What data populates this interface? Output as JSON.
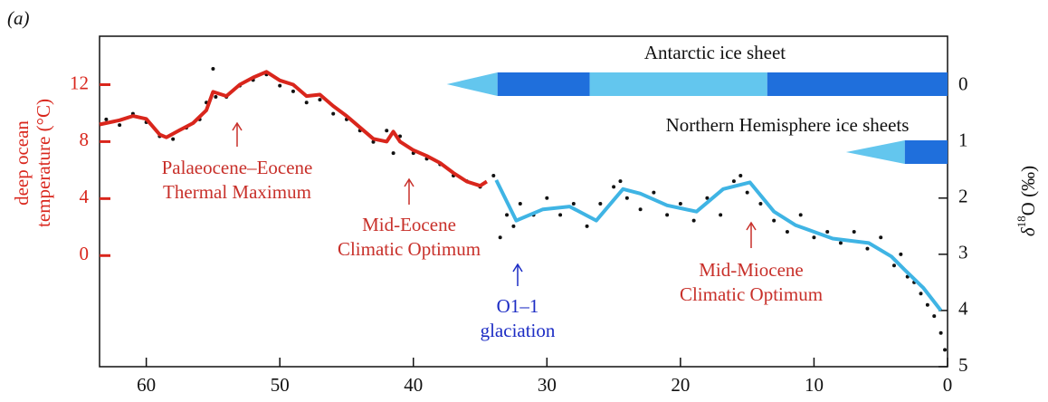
{
  "chart_data": {
    "type": "line",
    "panel_label": "(a)",
    "y_label": [
      "deep ocean",
      "temperature (°C)"
    ],
    "y2_label": [
      "δ",
      "18",
      "O (‰)"
    ],
    "xlim": [
      63.5,
      0
    ],
    "xticks": [
      60,
      50,
      40,
      30,
      20,
      10,
      0
    ],
    "ylim": [
      -7.8,
      15.4
    ],
    "yticks": [
      0,
      4,
      8,
      12
    ],
    "y2lim": [
      5,
      -0.88
    ],
    "y2ticks": [
      0,
      1,
      2,
      3,
      4,
      5
    ],
    "series": [
      {
        "kind": "scatter",
        "color": "#111111",
        "axis": "y2",
        "x": [
          63,
          62,
          61,
          60,
          59,
          58,
          57,
          56,
          55.5,
          55,
          54.8,
          54,
          53,
          52,
          51,
          50,
          49,
          48,
          47,
          46,
          45,
          44,
          43,
          42,
          41.5,
          41,
          40,
          39,
          38,
          37,
          36,
          35,
          34,
          33.5,
          33,
          32.5,
          32,
          31,
          30,
          29,
          28,
          27,
          26,
          25,
          24.5,
          24,
          23,
          22,
          21,
          20,
          19,
          18,
          17,
          16,
          15.5,
          15,
          14,
          13,
          12,
          11,
          10,
          9,
          8,
          7,
          6,
          5,
          4,
          3.5,
          3,
          2.5,
          2,
          1.5,
          1,
          0.5,
          0.2
        ],
        "values": [
          0.6,
          0.7,
          0.5,
          0.65,
          0.9,
          0.95,
          0.75,
          0.6,
          0.3,
          -0.3,
          0.2,
          0.2,
          0.0,
          -0.1,
          -0.2,
          0.0,
          0.1,
          0.3,
          0.25,
          0.5,
          0.6,
          0.8,
          1.0,
          0.8,
          1.2,
          0.9,
          1.2,
          1.3,
          1.4,
          1.6,
          1.7,
          1.8,
          1.6,
          2.7,
          2.3,
          2.5,
          2.1,
          2.3,
          2.0,
          2.3,
          2.1,
          2.5,
          2.1,
          1.8,
          1.7,
          2.0,
          2.2,
          1.9,
          2.3,
          2.1,
          2.4,
          2.0,
          2.3,
          1.7,
          1.6,
          1.9,
          2.1,
          2.4,
          2.6,
          2.3,
          2.7,
          2.6,
          2.8,
          2.6,
          2.9,
          2.7,
          3.2,
          3.0,
          3.4,
          3.5,
          3.7,
          3.9,
          4.1,
          4.4,
          4.7
        ]
      },
      {
        "kind": "line",
        "color": "#d9261c",
        "axis": "y",
        "x": [
          63.5,
          62,
          61,
          60,
          59,
          58.5,
          57.5,
          56.5,
          55.5,
          55,
          54,
          53,
          52,
          51,
          50,
          49,
          48,
          47,
          46,
          45,
          44,
          43,
          42,
          41.5,
          41,
          40,
          39,
          38,
          37,
          36,
          35,
          34.5
        ],
        "values": [
          9.2,
          9.5,
          9.8,
          9.6,
          8.5,
          8.3,
          8.8,
          9.3,
          10.2,
          11.5,
          11.2,
          12,
          12.5,
          12.9,
          12.3,
          12,
          11.2,
          11.3,
          10.5,
          9.8,
          9,
          8.2,
          8,
          8.7,
          8,
          7.4,
          7,
          6.5,
          5.8,
          5.2,
          4.9,
          5.2
        ]
      },
      {
        "kind": "line",
        "color": "#3fb4e4",
        "axis": "y2",
        "x": [
          33.8,
          32.3,
          30.3,
          28.3,
          26.3,
          24.3,
          23,
          21,
          18.8,
          16.8,
          14.8,
          13,
          11.4,
          8.6,
          5.9,
          4.2,
          3.2,
          1.8,
          0.5
        ],
        "values": [
          1.68,
          2.4,
          2.2,
          2.15,
          2.4,
          1.84,
          1.92,
          2.13,
          2.24,
          1.84,
          1.72,
          2.24,
          2.48,
          2.72,
          2.8,
          3.04,
          3.28,
          3.6,
          4.0
        ]
      }
    ],
    "ice_sheets": [
      {
        "name": "Antarctic ice sheet",
        "segments": [
          {
            "start": 37.5,
            "end": 33.7,
            "color": "#63c6ee",
            "shape": "taper"
          },
          {
            "start": 33.7,
            "end": 26.8,
            "color": "#1f6fdc",
            "shape": "bar"
          },
          {
            "start": 26.8,
            "end": 13.5,
            "color": "#63c6ee",
            "shape": "bar"
          },
          {
            "start": 13.5,
            "end": 0,
            "color": "#1f6fdc",
            "shape": "bar"
          }
        ]
      },
      {
        "name": "Northern Hemisphere ice sheets",
        "segments": [
          {
            "start": 7.6,
            "end": 3.2,
            "color": "#63c6ee",
            "shape": "taper"
          },
          {
            "start": 3.2,
            "end": 0,
            "color": "#1f6fdc",
            "shape": "bar"
          }
        ]
      }
    ],
    "annotations": [
      {
        "text": [
          "Palaeocene–Eocene",
          "Thermal Maximum"
        ],
        "color": "#c8302a"
      },
      {
        "text": [
          "Mid-Eocene",
          "Climatic Optimum"
        ],
        "color": "#c8302a"
      },
      {
        "text": [
          "O1–1",
          "glaciation"
        ],
        "color": "#1c2cc4"
      },
      {
        "text": [
          "Mid-Miocene",
          "Climatic Optimum"
        ],
        "color": "#c8302a"
      }
    ]
  }
}
